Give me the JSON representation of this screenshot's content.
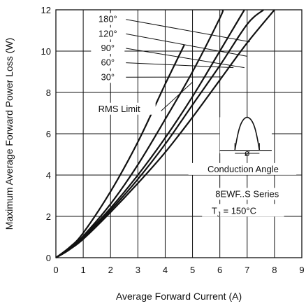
{
  "chart_data": {
    "type": "line",
    "xlabel": "Average Forward Current (A)",
    "ylabel": "Maximum Average Forward Power Loss (W)",
    "xlim": [
      0,
      9
    ],
    "ylim": [
      0,
      12
    ],
    "x_ticks": [
      "0",
      "1",
      "2",
      "3",
      "4",
      "5",
      "6",
      "7",
      "8",
      "9"
    ],
    "y_ticks": [
      "0",
      "2",
      "4",
      "6",
      "8",
      "10",
      "12"
    ],
    "grid": true,
    "line_color": "#111111",
    "series": [
      {
        "name": "180°",
        "x": [
          0,
          0.5,
          1,
          2,
          3,
          4,
          5,
          6,
          7,
          8
        ],
        "y": [
          0,
          0.4,
          0.9,
          2.2,
          3.6,
          5.1,
          6.8,
          8.6,
          10.4,
          12.0
        ]
      },
      {
        "name": "120°",
        "x": [
          0,
          0.5,
          1,
          2,
          3,
          4,
          5,
          6,
          7,
          7.6
        ],
        "y": [
          0,
          0.4,
          0.95,
          2.3,
          3.8,
          5.5,
          7.4,
          9.3,
          11.3,
          12.0
        ]
      },
      {
        "name": "90°",
        "x": [
          0,
          0.5,
          1,
          2,
          3,
          4,
          5,
          6,
          6.9
        ],
        "y": [
          0,
          0.4,
          1.0,
          2.4,
          4.0,
          5.8,
          7.8,
          10.0,
          12.0
        ]
      },
      {
        "name": "60°",
        "x": [
          0,
          0.5,
          1,
          2,
          3,
          4,
          5,
          6,
          6.1
        ],
        "y": [
          0,
          0.45,
          1.05,
          2.6,
          4.5,
          6.7,
          9.0,
          11.6,
          12.0
        ]
      },
      {
        "name": "30°",
        "x": [
          0,
          0.5,
          1,
          2,
          3,
          4,
          4.7
        ],
        "y": [
          0,
          0.5,
          1.2,
          3.2,
          5.6,
          8.4,
          10.3
        ]
      }
    ],
    "annotations": {
      "rms_limit": "RMS Limit",
      "conduction_angle": "Conduction Angle",
      "series_name": "8EWF..S Series",
      "tj_prefix": "T",
      "tj_subscript": "J",
      "tj_value": " = 150°C",
      "phi": "ø"
    }
  }
}
